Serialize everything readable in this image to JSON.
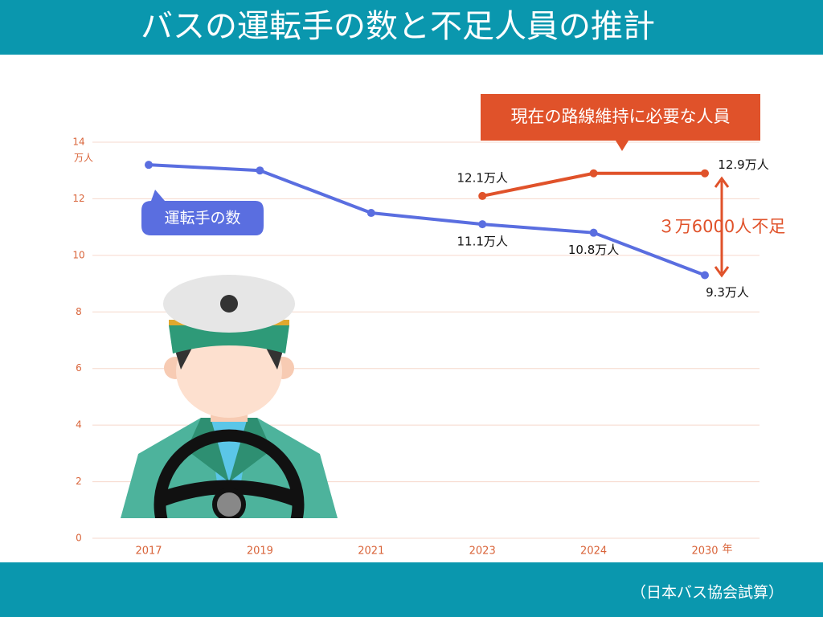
{
  "chart_data": {
    "type": "line",
    "title": "バスの運転手の数と不足人員の推計",
    "y_unit": "万人",
    "x_unit": "年",
    "categories": [
      "2017",
      "2019",
      "2021",
      "2023",
      "2024",
      "2030"
    ],
    "series": [
      {
        "name": "運転手の数",
        "color": "#5a6ee0",
        "values": [
          13.2,
          13.0,
          11.5,
          11.1,
          10.8,
          9.3
        ],
        "value_labels": [
          null,
          null,
          null,
          "11.1万人",
          "10.8万人",
          "9.3万人"
        ]
      },
      {
        "name": "現在の路線維持に必要な人員",
        "color": "#e0522a",
        "values": [
          null,
          null,
          null,
          12.1,
          12.9,
          12.9
        ],
        "value_labels": [
          null,
          null,
          null,
          "12.1万人",
          null,
          "12.9万人"
        ]
      }
    ],
    "ylim": [
      0,
      14
    ],
    "yticks": [
      0,
      2,
      4,
      6,
      8,
      10,
      12,
      14
    ],
    "grid": true,
    "annotations": {
      "shortage": "３万6000人不足"
    },
    "source": "（日本バス協会試算）"
  }
}
